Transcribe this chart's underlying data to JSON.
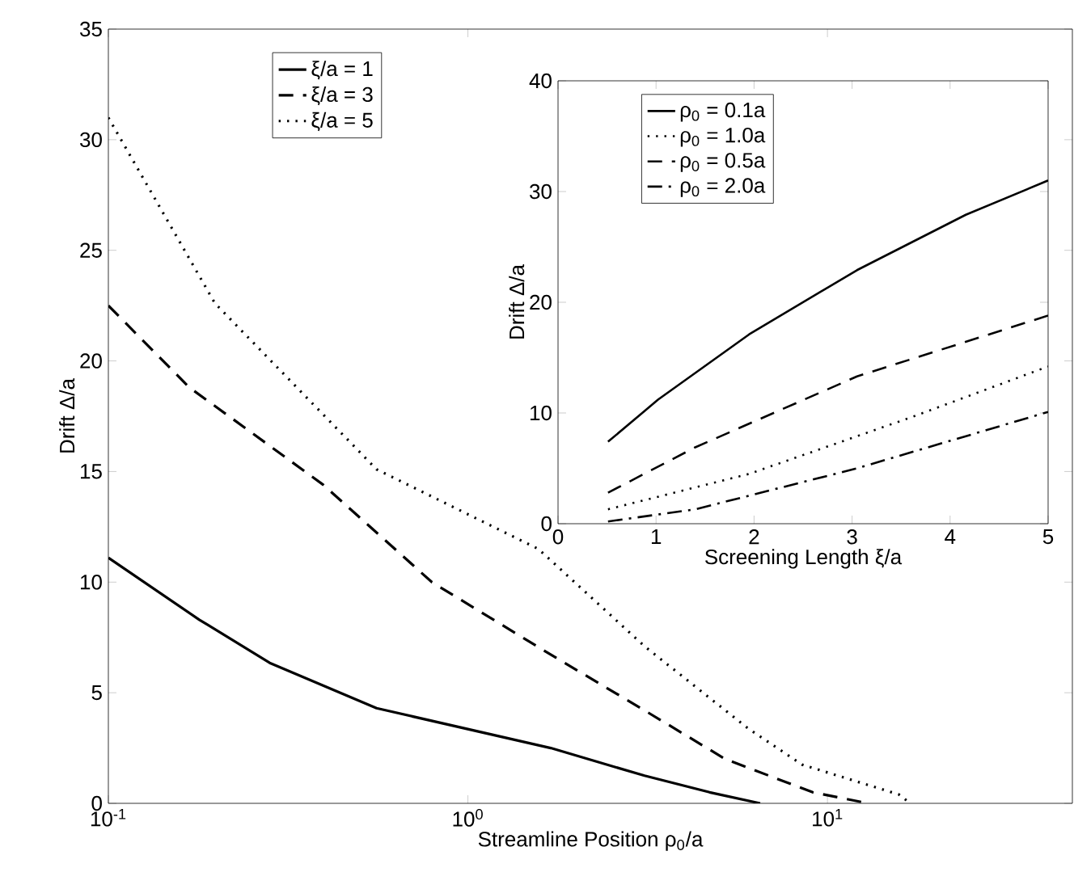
{
  "chart_data": [
    {
      "type": "line",
      "xlabel": "Streamline Position ρ$_{0}$/a",
      "ylabel": "Drift Δ/a",
      "log": "x",
      "xlim": [
        0.1,
        48
      ],
      "ylim": [
        0,
        35
      ],
      "xticks": [
        {
          "value": 0.1,
          "label": "10$^{-1}$"
        },
        {
          "value": 1,
          "label": "10$^{0}$"
        },
        {
          "value": 10,
          "label": "10$^{1}$"
        }
      ],
      "yticks": [
        0,
        5,
        10,
        15,
        20,
        25,
        30,
        35
      ],
      "legend": "top left",
      "series": [
        {
          "name": "ξ/a = 1",
          "color": "#000000",
          "line_style": "solid",
          "x": [
            0.1,
            0.179,
            0.281,
            0.557,
            1.7,
            3.1,
            4.7,
            6.5
          ],
          "values": [
            11.1,
            8.3,
            6.35,
            4.3,
            2.5,
            1.25,
            0.5,
            0
          ]
        },
        {
          "name": "ξ/a = 3",
          "color": "#000000",
          "line_style": "dashed",
          "x": [
            0.1,
            0.168,
            0.396,
            0.794,
            1.63,
            3.1,
            5.2,
            9.1,
            13
          ],
          "values": [
            22.5,
            18.8,
            14.4,
            10.0,
            6.9,
            4.2,
            2.0,
            0.5,
            0
          ]
        },
        {
          "name": "ξ/a = 5",
          "color": "#000000",
          "line_style": "dotted",
          "x": [
            0.1,
            0.198,
            0.557,
            1.57,
            3.1,
            6.0,
            8.5,
            15.8,
            17
          ],
          "values": [
            31,
            22.6,
            15.1,
            11.5,
            7.1,
            3.4,
            1.75,
            0.4,
            0
          ]
        }
      ]
    },
    {
      "type": "line",
      "xlabel": "Screening Length ξ/a",
      "ylabel": "Drift Δ/a",
      "xlim": [
        0,
        5
      ],
      "ylim": [
        0,
        40
      ],
      "xticks": [
        0,
        1,
        2,
        3,
        4,
        5
      ],
      "yticks": [
        0,
        10,
        20,
        30,
        40
      ],
      "legend": "top left",
      "series": [
        {
          "name": "ρ$_{0}$ = 0.1a",
          "color": "#000000",
          "line_style": "solid",
          "x": [
            0.51,
            1.02,
            1.95,
            3.05,
            4.16,
            5
          ],
          "values": [
            7.4,
            11.2,
            17.1,
            22.9,
            27.9,
            31
          ]
        },
        {
          "name": "ρ$_{0}$ = 1.0a",
          "color": "#000000",
          "line_style": "dotted",
          "x": [
            0.51,
            1.95,
            3.6,
            5
          ],
          "values": [
            1.3,
            4.5,
            9.6,
            14.2
          ]
        },
        {
          "name": "ρ$_{0}$ = 0.5a",
          "color": "#000000",
          "line_style": "dashed",
          "x": [
            0.51,
            1.4,
            3.05,
            5
          ],
          "values": [
            2.8,
            6.9,
            13.3,
            18.8
          ]
        },
        {
          "name": "ρ$_{0}$ = 2.0a",
          "color": "#000000",
          "line_style": "dashdot",
          "x": [
            0.51,
            1.4,
            3.05,
            5
          ],
          "values": [
            0.2,
            1.3,
            5.0,
            10.1
          ]
        }
      ]
    }
  ]
}
